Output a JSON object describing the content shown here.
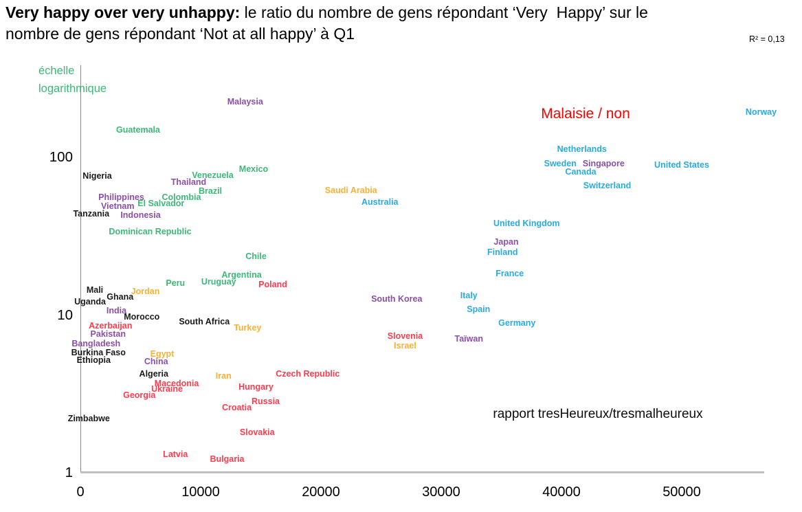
{
  "title": {
    "bold": "Very happy over very unhappy:",
    "line1_rest": " le ratio du nombre de gens répondant ‘Very  Happy’ sur le",
    "line2": "nombre de gens répondant ‘Not at all happy’ à Q1",
    "r_squared": "R² = 0,13"
  },
  "annotations": {
    "scale_note_line1": "échelle",
    "scale_note_line2": "logarithmique",
    "malaisie": "Malaisie / non",
    "rapport": "rapport tresHeureux/tresmalheureux"
  },
  "colors": {
    "green": "#3CB878",
    "purple": "#8B4FA8",
    "cyan": "#29ABE2",
    "red": "#FF3B4C",
    "orange": "#FBB034",
    "black": "#1a1a1a",
    "annotation_red": "#FF0000",
    "axis_gray": "#8a8a8a"
  },
  "chart_data": {
    "type": "scatter",
    "title": "Very happy over very unhappy: ratio Very Happy / Not at all happy (Q1)",
    "xlabel": "",
    "ylabel": "échelle logarithmique",
    "y_scale": "log",
    "x_ticks": [
      0,
      10000,
      20000,
      30000,
      40000,
      50000
    ],
    "y_ticks": [
      1,
      10,
      100
    ],
    "x_range": [
      0,
      57000
    ],
    "y_range": [
      1,
      250
    ],
    "grid": false,
    "legend": "none",
    "points": [
      {
        "label": "Malaysia",
        "x": 13700,
        "y": 225,
        "color": "purple"
      },
      {
        "label": "Guatemala",
        "x": 4800,
        "y": 150,
        "color": "green"
      },
      {
        "label": "Norway",
        "x": 56600,
        "y": 194,
        "color": "cyan"
      },
      {
        "label": "Netherlands",
        "x": 41700,
        "y": 113,
        "color": "cyan"
      },
      {
        "label": "Sweden",
        "x": 39900,
        "y": 91,
        "color": "cyan"
      },
      {
        "label": "Singapore",
        "x": 43500,
        "y": 91,
        "color": "purple"
      },
      {
        "label": "Canada",
        "x": 41600,
        "y": 81,
        "color": "cyan"
      },
      {
        "label": "United States",
        "x": 50000,
        "y": 90,
        "color": "cyan"
      },
      {
        "label": "Switzerland",
        "x": 43800,
        "y": 66,
        "color": "cyan"
      },
      {
        "label": "Nigeria",
        "x": 1400,
        "y": 76,
        "color": "black"
      },
      {
        "label": "Mexico",
        "x": 14400,
        "y": 84,
        "color": "green"
      },
      {
        "label": "Venezuela",
        "x": 11000,
        "y": 77,
        "color": "green"
      },
      {
        "label": "Thailand",
        "x": 9000,
        "y": 70,
        "color": "purple"
      },
      {
        "label": "Brazil",
        "x": 10800,
        "y": 61,
        "color": "green"
      },
      {
        "label": "Philippines",
        "x": 3400,
        "y": 56,
        "color": "purple"
      },
      {
        "label": "Colombia",
        "x": 8400,
        "y": 56,
        "color": "green"
      },
      {
        "label": "El Salvador",
        "x": 6700,
        "y": 51,
        "color": "green"
      },
      {
        "label": "Vietnam",
        "x": 3100,
        "y": 49,
        "color": "purple"
      },
      {
        "label": "Tanzania",
        "x": 900,
        "y": 44,
        "color": "black"
      },
      {
        "label": "Indonesia",
        "x": 5000,
        "y": 43,
        "color": "purple"
      },
      {
        "label": "Dominican Republic",
        "x": 5800,
        "y": 34,
        "color": "green"
      },
      {
        "label": "Saudi Arabia",
        "x": 22500,
        "y": 62,
        "color": "orange"
      },
      {
        "label": "Australia",
        "x": 24900,
        "y": 52,
        "color": "cyan"
      },
      {
        "label": "United Kingdom",
        "x": 37100,
        "y": 38,
        "color": "cyan"
      },
      {
        "label": "Japan",
        "x": 35400,
        "y": 29,
        "color": "purple"
      },
      {
        "label": "Finland",
        "x": 35100,
        "y": 25,
        "color": "cyan"
      },
      {
        "label": "France",
        "x": 35700,
        "y": 18.4,
        "color": "cyan"
      },
      {
        "label": "Chile",
        "x": 14600,
        "y": 23.6,
        "color": "green"
      },
      {
        "label": "Argentina",
        "x": 13400,
        "y": 18,
        "color": "green"
      },
      {
        "label": "Peru",
        "x": 7900,
        "y": 16,
        "color": "green"
      },
      {
        "label": "Uruguay",
        "x": 11500,
        "y": 16.3,
        "color": "green"
      },
      {
        "label": "Poland",
        "x": 16000,
        "y": 15.6,
        "color": "red"
      },
      {
        "label": "Mali",
        "x": 1200,
        "y": 14.4,
        "color": "black"
      },
      {
        "label": "Jordan",
        "x": 5400,
        "y": 14.1,
        "color": "orange"
      },
      {
        "label": "Ghana",
        "x": 3300,
        "y": 13,
        "color": "black"
      },
      {
        "label": "Uganda",
        "x": 800,
        "y": 12.2,
        "color": "black"
      },
      {
        "label": "South Korea",
        "x": 26300,
        "y": 12.6,
        "color": "purple"
      },
      {
        "label": "Italy",
        "x": 32300,
        "y": 13.3,
        "color": "cyan"
      },
      {
        "label": "India",
        "x": 3000,
        "y": 10.7,
        "color": "purple"
      },
      {
        "label": "Spain",
        "x": 33100,
        "y": 10.9,
        "color": "cyan"
      },
      {
        "label": "Morocco",
        "x": 5100,
        "y": 9.8,
        "color": "black"
      },
      {
        "label": "South Africa",
        "x": 10300,
        "y": 9.1,
        "color": "black"
      },
      {
        "label": "Germany",
        "x": 36300,
        "y": 8.9,
        "color": "cyan"
      },
      {
        "label": "Azerbaijan",
        "x": 2500,
        "y": 8.6,
        "color": "red"
      },
      {
        "label": "Turkey",
        "x": 13900,
        "y": 8.3,
        "color": "orange"
      },
      {
        "label": "Pakistan",
        "x": 2300,
        "y": 7.6,
        "color": "purple"
      },
      {
        "label": "Slovenia",
        "x": 27000,
        "y": 7.4,
        "color": "red"
      },
      {
        "label": "Taïwan",
        "x": 32300,
        "y": 7.1,
        "color": "purple"
      },
      {
        "label": "Bangladesh",
        "x": 1300,
        "y": 6.6,
        "color": "purple"
      },
      {
        "label": "Israel",
        "x": 27000,
        "y": 6.4,
        "color": "orange"
      },
      {
        "label": "Burkina Faso",
        "x": 1500,
        "y": 5.8,
        "color": "black"
      },
      {
        "label": "Egypt",
        "x": 6800,
        "y": 5.7,
        "color": "orange"
      },
      {
        "label": "Ethiopia",
        "x": 1100,
        "y": 5.2,
        "color": "black"
      },
      {
        "label": "China",
        "x": 6300,
        "y": 5.1,
        "color": "purple"
      },
      {
        "label": "Algeria",
        "x": 6100,
        "y": 4.25,
        "color": "black"
      },
      {
        "label": "Czech Republic",
        "x": 18900,
        "y": 4.25,
        "color": "red"
      },
      {
        "label": "Iran",
        "x": 11900,
        "y": 4.1,
        "color": "orange"
      },
      {
        "label": "Macedonia",
        "x": 8000,
        "y": 3.7,
        "color": "red"
      },
      {
        "label": "Hungary",
        "x": 14600,
        "y": 3.5,
        "color": "red"
      },
      {
        "label": "Ukraine",
        "x": 7200,
        "y": 3.4,
        "color": "red"
      },
      {
        "label": "Georgia",
        "x": 4900,
        "y": 3.1,
        "color": "red"
      },
      {
        "label": "Russia",
        "x": 15400,
        "y": 2.85,
        "color": "red"
      },
      {
        "label": "Croatia",
        "x": 13000,
        "y": 2.6,
        "color": "red"
      },
      {
        "label": "Zimbabwe",
        "x": 700,
        "y": 2.2,
        "color": "black"
      },
      {
        "label": "Slovakia",
        "x": 14700,
        "y": 1.8,
        "color": "red"
      },
      {
        "label": "Latvia",
        "x": 7900,
        "y": 1.31,
        "color": "red"
      },
      {
        "label": "Bulgaria",
        "x": 12200,
        "y": 1.22,
        "color": "red"
      }
    ]
  }
}
